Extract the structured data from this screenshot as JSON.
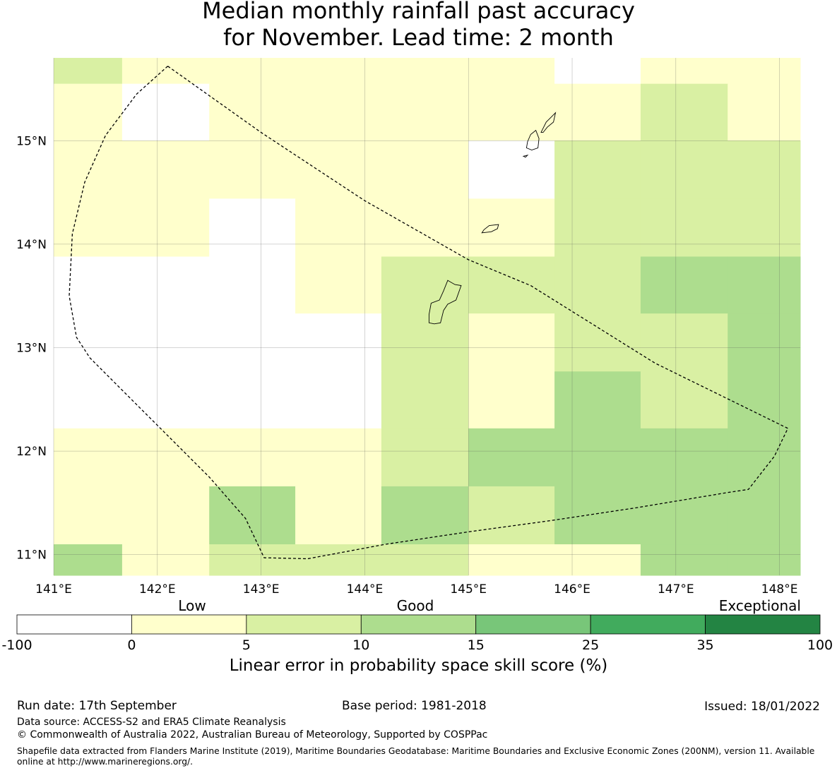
{
  "title": {
    "line1": "Median monthly rainfall past accuracy",
    "line2": "for November. Lead time: 2 month"
  },
  "map": {
    "lon_range": [
      141.0,
      148.2
    ],
    "lat_range": [
      10.8,
      15.8
    ],
    "x_ticks": [
      {
        "lon": 141,
        "label": "141°E"
      },
      {
        "lon": 142,
        "label": "142°E"
      },
      {
        "lon": 143,
        "label": "143°E"
      },
      {
        "lon": 144,
        "label": "144°E"
      },
      {
        "lon": 145,
        "label": "145°E"
      },
      {
        "lon": 146,
        "label": "146°E"
      },
      {
        "lon": 147,
        "label": "147°E"
      },
      {
        "lon": 148,
        "label": "148°E"
      }
    ],
    "y_ticks": [
      {
        "lat": 15,
        "label": "15°N"
      },
      {
        "lat": 14,
        "label": "14°N"
      },
      {
        "lat": 13,
        "label": "13°N"
      },
      {
        "lat": 12,
        "label": "12°N"
      },
      {
        "lat": 11,
        "label": "11°N"
      }
    ],
    "grid": true,
    "cell_columns_lon": [
      141.0,
      141.66,
      142.5,
      143.33,
      144.16,
      145.0,
      145.83,
      146.66,
      147.5,
      148.2
    ],
    "cell_rows_lat": [
      15.8,
      15.55,
      15.0,
      14.44,
      13.88,
      13.33,
      12.77,
      12.22,
      11.66,
      11.1,
      10.8
    ],
    "cell_classes": [
      [
        2,
        1,
        1,
        1,
        1,
        1,
        0,
        1,
        1
      ],
      [
        1,
        0,
        1,
        1,
        1,
        1,
        1,
        2,
        1
      ],
      [
        1,
        1,
        1,
        1,
        1,
        0,
        2,
        2,
        2
      ],
      [
        1,
        1,
        0,
        1,
        1,
        1,
        2,
        2,
        2
      ],
      [
        0,
        0,
        0,
        1,
        2,
        2,
        2,
        3,
        3
      ],
      [
        0,
        0,
        0,
        0,
        2,
        1,
        2,
        2,
        3
      ],
      [
        0,
        0,
        0,
        0,
        2,
        1,
        3,
        2,
        3
      ],
      [
        1,
        1,
        1,
        1,
        2,
        3,
        3,
        3,
        3
      ],
      [
        1,
        1,
        3,
        1,
        3,
        2,
        3,
        3,
        3
      ],
      [
        3,
        1,
        2,
        2,
        2,
        1,
        1,
        3,
        3
      ]
    ],
    "boundary_lonlat": [
      [
        142.1,
        15.72
      ],
      [
        141.8,
        15.45
      ],
      [
        141.5,
        15.05
      ],
      [
        141.3,
        14.6
      ],
      [
        141.18,
        14.1
      ],
      [
        141.15,
        13.5
      ],
      [
        141.22,
        13.1
      ],
      [
        141.35,
        12.9
      ],
      [
        141.8,
        12.45
      ],
      [
        142.2,
        12.05
      ],
      [
        142.5,
        11.75
      ],
      [
        142.85,
        11.35
      ],
      [
        143.03,
        10.97
      ],
      [
        143.45,
        10.96
      ],
      [
        144.2,
        11.1
      ],
      [
        145.0,
        11.22
      ],
      [
        145.8,
        11.33
      ],
      [
        146.6,
        11.45
      ],
      [
        147.5,
        11.6
      ],
      [
        147.7,
        11.63
      ],
      [
        147.95,
        11.95
      ],
      [
        148.08,
        12.22
      ],
      [
        146.8,
        12.85
      ],
      [
        145.6,
        13.6
      ],
      [
        145.0,
        13.85
      ],
      [
        144.0,
        14.42
      ],
      [
        143.0,
        15.08
      ],
      [
        142.1,
        15.72
      ]
    ],
    "islands_lonlat": [
      [
        [
          144.62,
          13.24
        ],
        [
          144.62,
          13.32
        ],
        [
          144.64,
          13.43
        ],
        [
          144.72,
          13.46
        ],
        [
          144.76,
          13.55
        ],
        [
          144.8,
          13.65
        ],
        [
          144.87,
          13.61
        ],
        [
          144.93,
          13.6
        ],
        [
          144.88,
          13.46
        ],
        [
          144.8,
          13.42
        ],
        [
          144.76,
          13.36
        ],
        [
          144.73,
          13.24
        ],
        [
          144.67,
          13.23
        ],
        [
          144.62,
          13.24
        ]
      ],
      [
        [
          145.13,
          14.11
        ],
        [
          145.15,
          14.14
        ],
        [
          145.2,
          14.18
        ],
        [
          145.29,
          14.19
        ],
        [
          145.28,
          14.15
        ],
        [
          145.22,
          14.12
        ],
        [
          145.13,
          14.11
        ]
      ],
      [
        [
          145.56,
          14.93
        ],
        [
          145.57,
          14.99
        ],
        [
          145.6,
          15.06
        ],
        [
          145.65,
          15.1
        ],
        [
          145.68,
          15.02
        ],
        [
          145.67,
          14.93
        ],
        [
          145.61,
          14.91
        ],
        [
          145.56,
          14.93
        ]
      ],
      [
        [
          145.7,
          15.08
        ],
        [
          145.75,
          15.18
        ],
        [
          145.8,
          15.23
        ],
        [
          145.84,
          15.27
        ],
        [
          145.82,
          15.18
        ],
        [
          145.76,
          15.13
        ],
        [
          145.72,
          15.08
        ],
        [
          145.7,
          15.08
        ]
      ],
      [
        [
          145.53,
          14.85
        ],
        [
          145.57,
          14.86
        ],
        [
          145.55,
          14.84
        ],
        [
          145.53,
          14.85
        ]
      ]
    ],
    "colors": [
      "#ffffff",
      "#ffffcc",
      "#d9f0a3",
      "#addd8e",
      "#78c679",
      "#41ab5d",
      "#238443"
    ]
  },
  "colorbar": {
    "category_labels": [
      "Low",
      "Good",
      "Exceptional"
    ],
    "tick_labels": [
      "-100",
      "0",
      "5",
      "10",
      "15",
      "25",
      "35",
      "100"
    ],
    "title": "Linear error in probability space skill score (%)"
  },
  "footer": {
    "run_date": "Run date: 17th September",
    "base_period": "Base period: 1981-2018",
    "issued": "Issued: 18/01/2022",
    "data_source": "Data source: ACCESS-S2 and ERA5 Climate Reanalysis",
    "copyright": "© Commonwealth of Australia 2022, Australian Bureau of Meteorology, Supported by COSPPac",
    "shapefile_note": "Shapefile data extracted from Flanders Marine Institute (2019), Maritime Boundaries Geodatabase: Maritime Boundaries and Exclusive Economic Zones (200NM), version 11. Available online at http://www.marineregions.org/."
  }
}
